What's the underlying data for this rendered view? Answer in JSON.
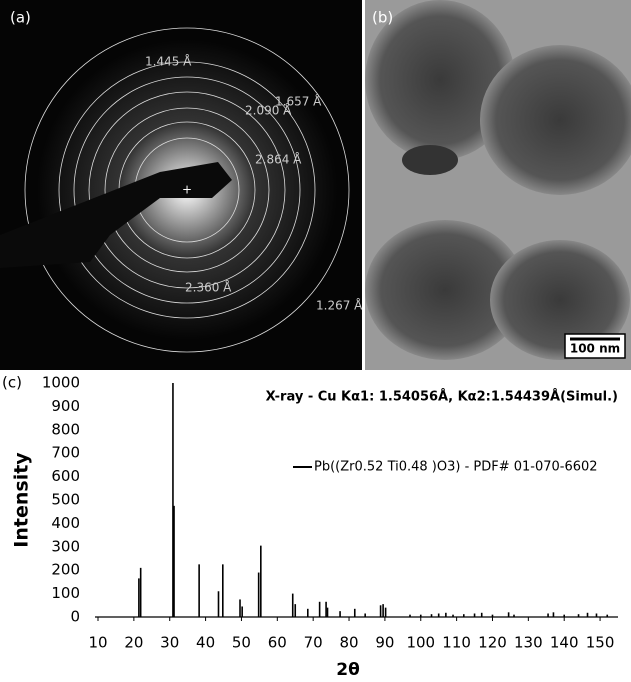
{
  "panels": {
    "a": {
      "label": "(a)",
      "ring_labels": [
        "1.445 Å",
        "1.657 Å",
        "2.090 Å",
        "2.864 Å",
        "2.360 Å",
        "1.267 Å"
      ]
    },
    "b": {
      "label": "(b)",
      "scale_bar": "100 nm"
    }
  },
  "chart_data": {
    "type": "stem",
    "panel_label": "(c)",
    "annotation": "X-ray - Cu Kα1: 1.54056Å, Kα2:1.54439Å(Simul.)",
    "x_label": "2θ",
    "y_label": "Intensity",
    "series": [
      {
        "name": "Pb((Zr0.52 Ti0.48 )O3) - PDF# 01-070-6602",
        "color": "#000000",
        "x": [
          21.4,
          21.9,
          30.9,
          31.2,
          38.2,
          43.6,
          44.8,
          49.6,
          50.2,
          54.8,
          55.4,
          64.3,
          65.0,
          68.5,
          71.8,
          73.6,
          74.0,
          77.5,
          81.6,
          84.5,
          88.8,
          89.5,
          90.2,
          97,
          100,
          103,
          105,
          107,
          109,
          112,
          115,
          117,
          120,
          124.5,
          126,
          135.5,
          137,
          140,
          144,
          146.5,
          149,
          152
        ],
        "values": [
          165,
          210,
          1000,
          475,
          225,
          110,
          225,
          75,
          45,
          190,
          305,
          100,
          55,
          35,
          65,
          65,
          40,
          25,
          35,
          15,
          50,
          55,
          40,
          10,
          10,
          12,
          15,
          18,
          10,
          12,
          15,
          18,
          10,
          20,
          10,
          15,
          20,
          10,
          12,
          18,
          15,
          10
        ]
      }
    ],
    "xlim": [
      10,
      155
    ],
    "ylim": [
      0,
      1000
    ],
    "xticks": [
      10,
      20,
      30,
      40,
      50,
      60,
      70,
      80,
      90,
      100,
      110,
      120,
      130,
      140,
      150
    ],
    "yticks": [
      0,
      100,
      200,
      300,
      400,
      500,
      600,
      700,
      800,
      900,
      1000
    ],
    "grid": false
  }
}
